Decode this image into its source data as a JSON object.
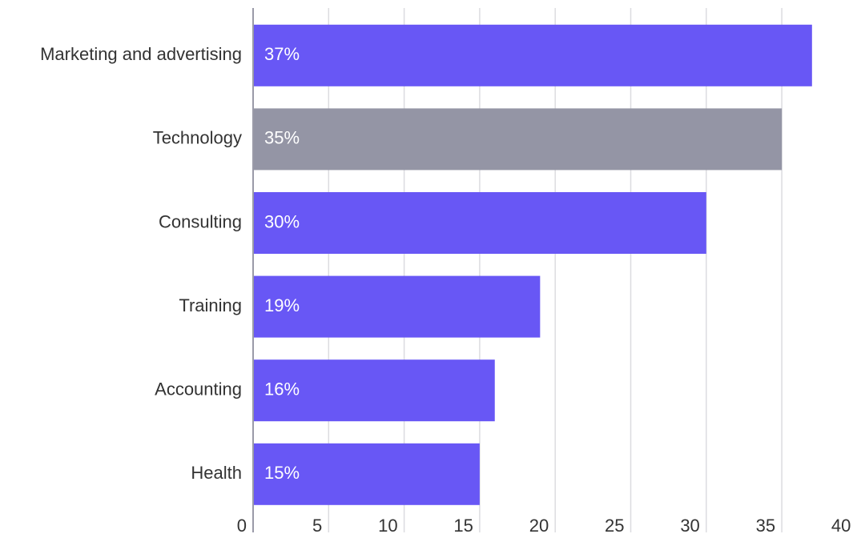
{
  "chart_data": {
    "type": "bar",
    "orientation": "horizontal",
    "categories": [
      "Marketing and advertising",
      "Technology",
      "Consulting",
      "Training",
      "Accounting",
      "Health"
    ],
    "values": [
      37,
      35,
      30,
      19,
      16,
      15
    ],
    "value_labels": [
      "37%",
      "35%",
      "30%",
      "19%",
      "16%",
      "15%"
    ],
    "colors": [
      "#6857f5",
      "#9495a5",
      "#6857f5",
      "#6857f5",
      "#6857f5",
      "#6857f5"
    ],
    "xlim": [
      0,
      40
    ],
    "xticks": [
      0,
      5,
      10,
      15,
      20,
      25,
      30,
      35,
      40
    ],
    "grid": true
  }
}
